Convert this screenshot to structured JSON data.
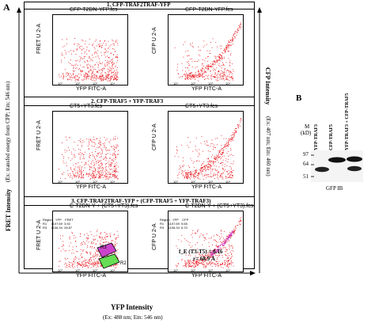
{
  "panel_a_letter": "A",
  "panel_b_letter": "B",
  "sections": [
    {
      "header": "1. CFP-TRAF2TRAF-YFP"
    },
    {
      "header": "2. CFP-TRAF5 + YFP-TRAF3"
    },
    {
      "header": "3. CFP-TRAF2TRAF-YFP + (CFP-TRAF5 + YFP-TRAF3)"
    }
  ],
  "plots": [
    {
      "title": "CFP-T2DN-YFP.fcs",
      "ylabel": "FRET U 2-A",
      "xlabel": "YFP FITC-A"
    },
    {
      "title": "CFP-T2DN-YFP.fcs",
      "ylabel": "CFP U 2-A",
      "xlabel": "YFP FITC-A"
    },
    {
      "title": "CT5+YT3.fcs",
      "ylabel": "FRET U 2-A",
      "xlabel": "YFP FITC-A"
    },
    {
      "title": "CT5+YT3.fcs",
      "ylabel": "CFP U 2-A",
      "xlabel": "YFP FITC-A"
    },
    {
      "title": "C-T2DN-Y + (CT5+YT3).fcs",
      "ylabel": "FRET U 2-A",
      "xlabel": "YFP FITC-A"
    },
    {
      "title": "C-T2DN-Y + (CT5+YT3).fcs",
      "ylabel": "CFP U 2-A",
      "xlabel": "YFP FITC-A"
    }
  ],
  "tables": {
    "left": {
      "header": [
        "Region",
        "YFP",
        "FRET"
      ],
      "rows": [
        [
          "R1",
          "1107.69",
          "3.92"
        ],
        [
          "R3",
          "1106.34",
          "28.87"
        ]
      ]
    },
    "right": {
      "header": [
        "Region",
        "YFP",
        "CFP"
      ],
      "rows": [
        [
          "R1",
          "1107.69",
          "5.65"
        ],
        [
          "R3",
          "1106.34",
          "6.70"
        ]
      ]
    }
  },
  "region_labels": {
    "r3": "R3",
    "r2": "R2"
  },
  "fret_annotation": {
    "line1": "f_E (T3-T5) = 0.16",
    "line2": "r= 68.9 Å"
  },
  "axis_titles": {
    "y_left": "FRET Intensity",
    "y_left_sub": "(Ex: transfed energy from CFP; Em: 546 nm)",
    "y_right": "CFP Intensity",
    "y_right_sub": "(Ex: 407 nm; Em: 460 nm)",
    "x_bottom": "YFP Intensity",
    "x_bottom_sub": "(Ex: 488 nm; Em: 546 nm)"
  },
  "blot": {
    "m_label": "M",
    "kd_label": "(kD)",
    "markers": [
      "97",
      "64",
      "51"
    ],
    "lanes": [
      "YFP-TRAF3",
      "CFP-TRAF5",
      "YFP-TRAF3 + CFP-TRAF5"
    ],
    "ib_label": "GFP IB"
  },
  "colors": {
    "scatter": "#e8141b",
    "region_r3": "#cc44cc",
    "region_r2": "#66dd55"
  }
}
